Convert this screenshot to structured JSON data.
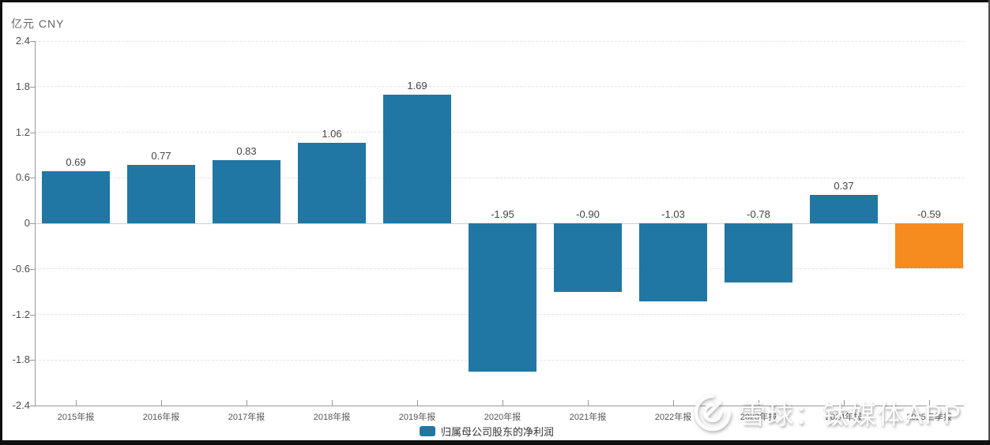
{
  "chart": {
    "unit_label": "亿元 CNY",
    "legend": {
      "label": "归属母公司股东的净利润"
    },
    "watermark": {
      "text": "雪球：钛媒体APP",
      "logo": "xueqiu-logo"
    },
    "colors": {
      "bar_default": "#2077a3",
      "bar_highlight": "#f68b1f",
      "axis": "#999999",
      "grid": "#e3e3e3",
      "zero_line": "#cfcfcf",
      "value_label": "#444444",
      "tick_label": "#555555"
    }
  },
  "chart_data": {
    "type": "bar",
    "title": "归属母公司股东的净利润",
    "unit": "亿元 CNY",
    "categories": [
      "2015年报",
      "2016年报",
      "2017年报",
      "2018年报",
      "2019年报",
      "2020年报",
      "2021年报",
      "2022年报",
      "2023年报",
      "2024年报",
      "2025三季报"
    ],
    "values": [
      0.69,
      0.77,
      0.83,
      1.06,
      1.69,
      -1.95,
      -0.9,
      -1.03,
      -0.78,
      0.37,
      -0.59
    ],
    "value_labels": [
      "0.69",
      "0.77",
      "0.83",
      "1.06",
      "1.69",
      "-1.95",
      "-0.90",
      "-1.03",
      "-0.78",
      "0.37",
      "-0.59"
    ],
    "series": [
      {
        "name": "归属母公司股东的净利润",
        "values": [
          0.69,
          0.77,
          0.83,
          1.06,
          1.69,
          -1.95,
          -0.9,
          -1.03,
          -0.78,
          0.37,
          -0.59
        ]
      }
    ],
    "highlight_index": 10,
    "ylim": [
      -2.4,
      2.4
    ],
    "ytick_step": 0.6,
    "yticks": [
      "2.4",
      "1.8",
      "1.2",
      "0.6",
      "0",
      "-0.6",
      "-1.2",
      "-1.8",
      "-2.4"
    ],
    "xlabel": "",
    "ylabel": "亿元 CNY",
    "grid": true,
    "legend_position": "bottom"
  }
}
